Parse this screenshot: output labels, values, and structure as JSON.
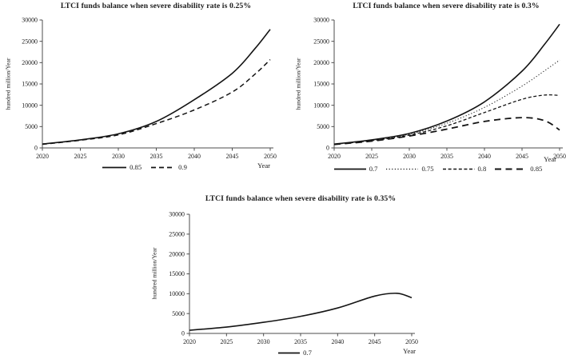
{
  "figure": {
    "background": "#ffffff",
    "line_color": "#141414",
    "axis_color": "#4d4d4d",
    "text_color": "#1a1a1a"
  },
  "chart_data": [
    {
      "type": "line",
      "title": "LTCI funds balance when severe disability rate is 0.25%",
      "xlabel": "Year",
      "ylabel": "hundred million/Year",
      "xlim": [
        2020,
        2050
      ],
      "ylim": [
        0,
        30000
      ],
      "xticks": [
        2020,
        2025,
        2030,
        2035,
        2040,
        2045,
        2050
      ],
      "yticks": [
        0,
        5000,
        10000,
        15000,
        20000,
        25000,
        30000
      ],
      "grid": false,
      "legend_position": "bottom",
      "x": [
        2020,
        2025,
        2030,
        2035,
        2040,
        2045,
        2048,
        2050
      ],
      "series": [
        {
          "name": "0.85",
          "line_style": "solid",
          "values": [
            900,
            1900,
            3300,
            6200,
            11300,
            17500,
            23300,
            27800
          ]
        },
        {
          "name": "0.9",
          "line_style": "medium-dashed",
          "values": [
            850,
            1800,
            3050,
            5700,
            8900,
            13100,
            17300,
            20700
          ]
        }
      ]
    },
    {
      "type": "line",
      "title": "LTCI funds balance when severe disability rate is 0.3%",
      "xlabel": "Year",
      "ylabel": "hundred million/Year",
      "xlim": [
        2020,
        2050
      ],
      "ylim": [
        0,
        30000
      ],
      "xticks": [
        2020,
        2025,
        2030,
        2035,
        2040,
        2045,
        2050
      ],
      "yticks": [
        0,
        5000,
        10000,
        15000,
        20000,
        25000,
        30000
      ],
      "grid": false,
      "legend_position": "bottom",
      "x": [
        2020,
        2025,
        2030,
        2035,
        2040,
        2045,
        2048,
        2050
      ],
      "series": [
        {
          "name": "0.7",
          "line_style": "solid",
          "values": [
            900,
            1900,
            3400,
            6300,
            10800,
            18000,
            24300,
            29000
          ]
        },
        {
          "name": "0.75",
          "line_style": "dotted",
          "values": [
            900,
            1800,
            3200,
            5800,
            9500,
            14500,
            18100,
            20600
          ]
        },
        {
          "name": "0.8",
          "line_style": "dashed",
          "values": [
            850,
            1700,
            3000,
            5200,
            8300,
            11400,
            12400,
            12300
          ]
        },
        {
          "name": "0.85",
          "line_style": "long-dashed",
          "values": [
            800,
            1600,
            2800,
            4400,
            6200,
            7100,
            6400,
            4200
          ]
        }
      ]
    },
    {
      "type": "line",
      "title": "LTCI funds balance when severe disability rate is 0.35%",
      "xlabel": "Year",
      "ylabel": "hundred million/Year",
      "xlim": [
        2020,
        2050
      ],
      "ylim": [
        0,
        30000
      ],
      "xticks": [
        2020,
        2025,
        2030,
        2035,
        2040,
        2045,
        2050
      ],
      "yticks": [
        0,
        5000,
        10000,
        15000,
        20000,
        25000,
        30000
      ],
      "grid": false,
      "legend_position": "bottom",
      "x": [
        2020,
        2025,
        2030,
        2035,
        2040,
        2045,
        2048,
        2050
      ],
      "series": [
        {
          "name": "0.7",
          "line_style": "solid",
          "values": [
            800,
            1600,
            2800,
            4300,
            6400,
            9400,
            10100,
            9000
          ]
        }
      ]
    }
  ]
}
